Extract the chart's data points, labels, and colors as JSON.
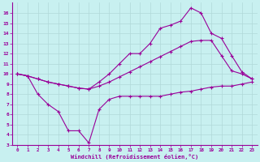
{
  "xlabel": "Windchill (Refroidissement éolien,°C)",
  "background_color": "#c8f0f0",
  "grid_color": "#b0d8d8",
  "line_color": "#990099",
  "xlim": [
    -0.5,
    23.5
  ],
  "ylim": [
    3,
    17
  ],
  "xticks": [
    0,
    1,
    2,
    3,
    4,
    5,
    6,
    7,
    8,
    9,
    10,
    11,
    12,
    13,
    14,
    15,
    16,
    17,
    18,
    19,
    20,
    21,
    22,
    23
  ],
  "yticks": [
    3,
    4,
    5,
    6,
    7,
    8,
    9,
    10,
    11,
    12,
    13,
    14,
    15,
    16
  ],
  "line1_x": [
    0,
    1,
    2,
    3,
    4,
    5,
    6,
    7,
    8,
    9,
    10,
    11,
    12,
    13,
    14,
    15,
    16,
    17,
    18,
    19,
    20,
    21,
    22,
    23
  ],
  "line1_y": [
    10.0,
    9.8,
    8.0,
    7.0,
    6.3,
    4.4,
    4.4,
    3.2,
    6.5,
    7.5,
    7.8,
    7.8,
    7.8,
    7.8,
    7.8,
    8.0,
    8.2,
    8.3,
    8.5,
    8.7,
    8.8,
    8.8,
    9.0,
    9.2
  ],
  "line2_x": [
    0,
    1,
    2,
    3,
    4,
    5,
    6,
    7,
    8,
    9,
    10,
    11,
    12,
    13,
    14,
    15,
    16,
    17,
    18,
    19,
    20,
    21,
    22,
    23
  ],
  "line2_y": [
    10.0,
    9.8,
    9.5,
    9.2,
    9.0,
    8.8,
    8.6,
    8.5,
    8.8,
    9.2,
    9.7,
    10.2,
    10.7,
    11.2,
    11.7,
    12.2,
    12.7,
    13.2,
    13.3,
    13.3,
    11.8,
    10.3,
    10.0,
    9.5
  ],
  "line3_x": [
    0,
    1,
    2,
    3,
    4,
    5,
    6,
    7,
    8,
    9,
    10,
    11,
    12,
    13,
    14,
    15,
    16,
    17,
    18,
    19,
    20,
    21,
    22,
    23
  ],
  "line3_y": [
    10.0,
    9.8,
    9.5,
    9.2,
    9.0,
    8.8,
    8.6,
    8.5,
    9.2,
    10.0,
    11.0,
    12.0,
    12.0,
    13.0,
    14.5,
    14.8,
    15.2,
    16.5,
    16.0,
    14.0,
    13.5,
    11.8,
    10.2,
    9.5
  ]
}
